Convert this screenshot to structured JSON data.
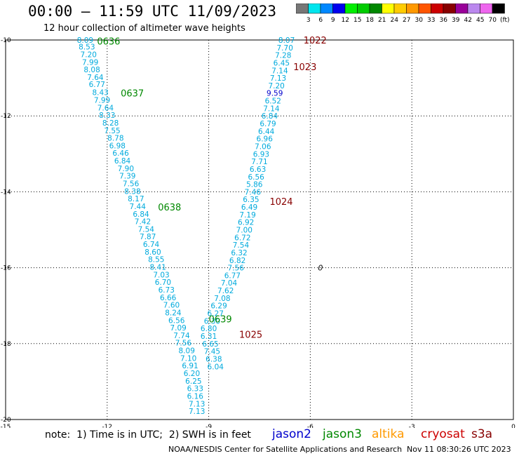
{
  "header": {
    "title": "00:00 – 11:59 UTC 11/09/2023",
    "subtitle": "12 hour collection of altimeter wave heights"
  },
  "colorbar": {
    "labels": [
      "3",
      "6",
      "9",
      "12",
      "15",
      "18",
      "21",
      "24",
      "27",
      "30",
      "33",
      "36",
      "39",
      "42",
      "45",
      "70",
      "(ft)"
    ],
    "colors": [
      "#777777",
      "#00e5ee",
      "#0088ff",
      "#0000ee",
      "#00ee00",
      "#00cc00",
      "#008800",
      "#ffff00",
      "#ffcc00",
      "#ff9900",
      "#ff5500",
      "#cc0000",
      "#880000",
      "#990099",
      "#bb88ee",
      "#ee66ee",
      "#000000"
    ]
  },
  "chart_data": {
    "type": "scatter",
    "xlim": [
      -15,
      0
    ],
    "ylim": [
      -20,
      -10
    ],
    "x_ticks": [
      "-15",
      "-12",
      "-9",
      "-6",
      "-3",
      "0"
    ],
    "y_ticks": [
      "-10",
      "-12",
      "-14",
      "-16",
      "-18",
      "-20"
    ],
    "grid": true,
    "track_labels": [
      {
        "text": "0636",
        "x": -12.3,
        "y": -10.03,
        "color": "#008800"
      },
      {
        "text": "0637",
        "x": -11.6,
        "y": -11.4,
        "color": "#008800"
      },
      {
        "text": "0638",
        "x": -10.5,
        "y": -14.4,
        "color": "#008800"
      },
      {
        "text": "0639",
        "x": -9.0,
        "y": -17.35,
        "color": "#008800"
      },
      {
        "text": "1022",
        "x": -6.2,
        "y": -10.0,
        "color": "#880000"
      },
      {
        "text": "1023",
        "x": -6.5,
        "y": -10.7,
        "color": "#880000"
      },
      {
        "text": "1024",
        "x": -7.2,
        "y": -14.25,
        "color": "#880000"
      },
      {
        "text": "1025",
        "x": -8.1,
        "y": -17.75,
        "color": "#880000"
      }
    ],
    "series": [
      {
        "name": "jason3",
        "color": "#00aadd",
        "points": [
          [
            -12.65,
            -10.0,
            "8.09"
          ],
          [
            -12.6,
            -10.18,
            "8.53"
          ],
          [
            -12.55,
            -10.38,
            "7.20"
          ],
          [
            -12.5,
            -10.58,
            "7.99"
          ],
          [
            -12.45,
            -10.78,
            "8.08"
          ],
          [
            -12.35,
            -10.98,
            "7.64"
          ],
          [
            -12.3,
            -11.16,
            "6.77"
          ],
          [
            -12.2,
            -11.38,
            "8.43"
          ],
          [
            -12.15,
            -11.58,
            "7.99"
          ],
          [
            -12.05,
            -11.78,
            "7.64"
          ],
          [
            -12.0,
            -11.98,
            "8.33"
          ],
          [
            -11.9,
            -12.18,
            "8.28"
          ],
          [
            -11.85,
            -12.38,
            "7.55"
          ],
          [
            -11.75,
            -12.58,
            "8.78"
          ],
          [
            -11.7,
            -12.78,
            "6.98"
          ],
          [
            -11.6,
            -12.98,
            "6.46"
          ],
          [
            -11.55,
            -13.18,
            "6.84"
          ],
          [
            -11.45,
            -13.38,
            "7.90"
          ],
          [
            -11.4,
            -13.58,
            "7.39"
          ],
          [
            -11.3,
            -13.78,
            "7.56"
          ],
          [
            -11.25,
            -13.98,
            "8.38"
          ],
          [
            -11.15,
            -14.18,
            "8.17"
          ],
          [
            -11.1,
            -14.38,
            "7.44"
          ],
          [
            -11.0,
            -14.58,
            "6.84"
          ],
          [
            -10.95,
            -14.78,
            "7.42"
          ],
          [
            -10.85,
            -14.98,
            "7.54"
          ],
          [
            -10.8,
            -15.18,
            "7.87"
          ],
          [
            -10.7,
            -15.38,
            "6.74"
          ],
          [
            -10.65,
            -15.58,
            "8.60"
          ],
          [
            -10.55,
            -15.78,
            "8.55"
          ],
          [
            -10.5,
            -15.98,
            "8.41"
          ],
          [
            -10.4,
            -16.18,
            "7.03"
          ],
          [
            -10.35,
            -16.38,
            "6.70"
          ],
          [
            -10.25,
            -16.58,
            "6.73"
          ],
          [
            -10.2,
            -16.78,
            "6.66"
          ],
          [
            -10.1,
            -16.98,
            "7.60"
          ],
          [
            -10.05,
            -17.18,
            "8.24"
          ],
          [
            -9.95,
            -17.38,
            "6.56"
          ],
          [
            -9.9,
            -17.58,
            "7.09"
          ],
          [
            -9.8,
            -17.78,
            "7.74"
          ],
          [
            -9.75,
            -17.98,
            "7.56"
          ],
          [
            -9.65,
            -18.18,
            "8.09"
          ],
          [
            -9.6,
            -18.38,
            "7.10"
          ],
          [
            -9.55,
            -18.58,
            "6.91"
          ],
          [
            -9.5,
            -18.78,
            "6.20"
          ],
          [
            -9.45,
            -18.98,
            "6.25"
          ],
          [
            -9.4,
            -19.18,
            "6.33"
          ],
          [
            -9.4,
            -19.38,
            "6.16"
          ],
          [
            -9.35,
            -19.58,
            "7.13"
          ],
          [
            -9.35,
            -19.78,
            "7.13"
          ]
        ]
      },
      {
        "name": "cryosat",
        "color": "#00aadd",
        "points": [
          [
            -6.7,
            -10.0,
            "8.07"
          ],
          [
            -6.75,
            -10.2,
            "7.70"
          ],
          [
            -6.8,
            -10.4,
            "7.28"
          ],
          [
            -6.85,
            -10.6,
            "6.45"
          ],
          [
            -6.9,
            -10.8,
            "7.14"
          ],
          [
            -6.95,
            -11.0,
            "7.13"
          ],
          [
            -7.0,
            -11.2,
            "7.20"
          ],
          [
            -7.05,
            -11.4,
            "9.59"
          ],
          [
            -7.1,
            -11.6,
            "6.52"
          ],
          [
            -7.15,
            -11.8,
            "7.14"
          ],
          [
            -7.2,
            -12.0,
            "6.84"
          ],
          [
            -7.25,
            -12.2,
            "6.79"
          ],
          [
            -7.3,
            -12.4,
            "6.44"
          ],
          [
            -7.35,
            -12.6,
            "6.96"
          ],
          [
            -7.4,
            -12.8,
            "7.06"
          ],
          [
            -7.45,
            -13.0,
            "6.93"
          ],
          [
            -7.5,
            -13.2,
            "7.71"
          ],
          [
            -7.55,
            -13.4,
            "6.63"
          ],
          [
            -7.6,
            -13.6,
            "6.56"
          ],
          [
            -7.65,
            -13.8,
            "5.86"
          ],
          [
            -7.7,
            -14.0,
            "7.46"
          ],
          [
            -7.75,
            -14.2,
            "6.35"
          ],
          [
            -7.8,
            -14.4,
            "6.49"
          ],
          [
            -7.85,
            -14.6,
            "7.19"
          ],
          [
            -7.9,
            -14.8,
            "6.92"
          ],
          [
            -7.95,
            -15.0,
            "7.00"
          ],
          [
            -8.0,
            -15.2,
            "6.72"
          ],
          [
            -8.05,
            -15.4,
            "7.54"
          ],
          [
            -8.1,
            -15.6,
            "6.32"
          ],
          [
            -8.15,
            -15.8,
            "6.82"
          ],
          [
            -8.2,
            -16.0,
            "7.56"
          ],
          [
            -8.3,
            -16.2,
            "6.77"
          ],
          [
            -8.4,
            -16.4,
            "7.04"
          ],
          [
            -8.5,
            -16.6,
            "7.62"
          ],
          [
            -8.6,
            -16.8,
            "7.08"
          ],
          [
            -8.7,
            -17.0,
            "6.29"
          ],
          [
            -8.8,
            -17.2,
            "6.27"
          ],
          [
            -8.9,
            -17.4,
            "6.30"
          ],
          [
            -9.0,
            -17.6,
            "6.80"
          ],
          [
            -9.0,
            -17.8,
            "6.31"
          ],
          [
            -8.95,
            -18.0,
            "6.65"
          ],
          [
            -8.9,
            -18.2,
            "7.45"
          ],
          [
            -8.85,
            -18.4,
            "6.38"
          ],
          [
            -8.8,
            -18.6,
            "6.04"
          ]
        ]
      }
    ],
    "highlight_points": [
      {
        "x": -7.05,
        "y": -11.4,
        "value": "9.59",
        "color": "#0000cc"
      }
    ],
    "extra_marks": [
      {
        "text": "0",
        "x": -5.7,
        "y": -16.0,
        "color": "#000000"
      }
    ]
  },
  "note": "note:  1) Time is in UTC;  2) SWH is in feet",
  "legend": [
    {
      "label": "jason2",
      "color": "#0000cc"
    },
    {
      "label": "jason3",
      "color": "#008800"
    },
    {
      "label": "altika",
      "color": "#ff9900"
    },
    {
      "label": "cryosat",
      "color": "#cc0000"
    },
    {
      "label": "s3a",
      "color": "#880000"
    }
  ],
  "footer": {
    "left": "NOAA/NESDIS Center for Satellite Applications and Research",
    "right": "Nov 11 08:30:26 UTC 2023"
  }
}
